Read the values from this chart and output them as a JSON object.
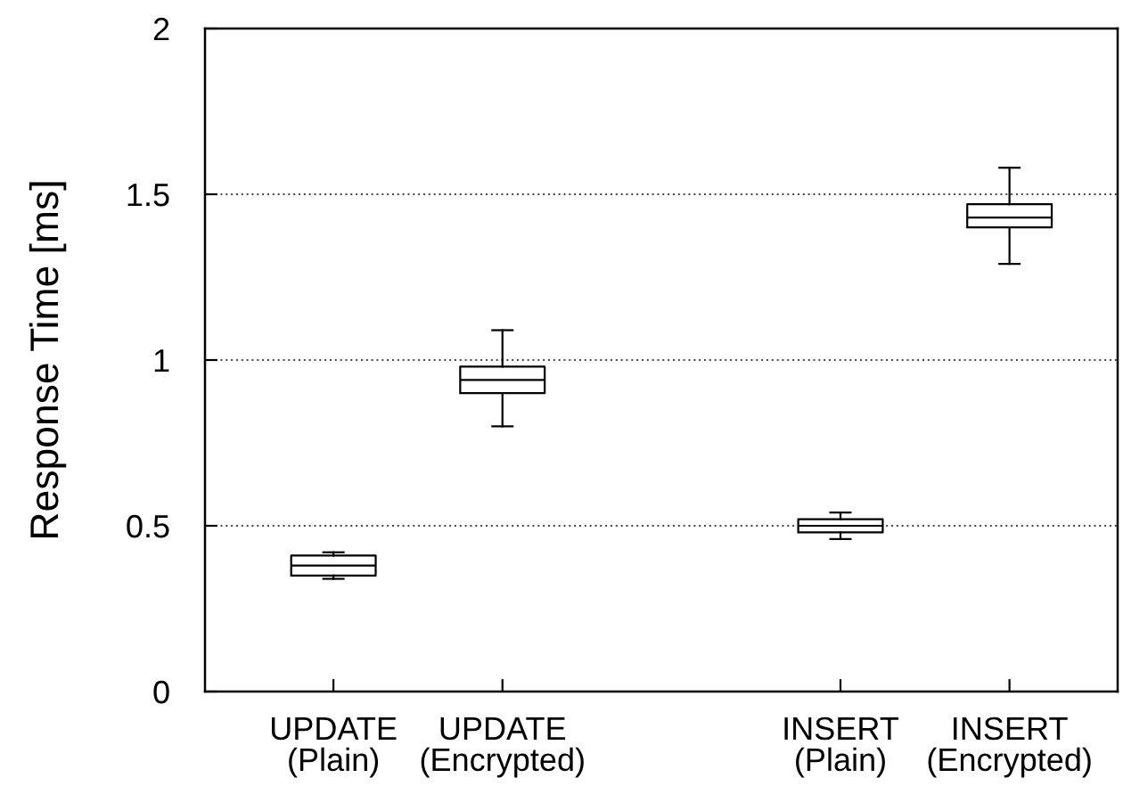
{
  "chart_data": {
    "type": "box",
    "ylabel": "Response Time [ms]",
    "categories": [
      "UPDATE\n(Plain)",
      "UPDATE\n(Encrypted)",
      null,
      "INSERT\n(Plain)",
      "INSERT\n(Encrypted)"
    ],
    "boxes": [
      {
        "low": 0.34,
        "q1": 0.35,
        "median": 0.38,
        "q3": 0.41,
        "high": 0.42
      },
      {
        "low": 0.8,
        "q1": 0.9,
        "median": 0.94,
        "q3": 0.98,
        "high": 1.09
      },
      null,
      {
        "low": 0.46,
        "q1": 0.48,
        "median": 0.5,
        "q3": 0.52,
        "high": 0.54
      },
      {
        "low": 1.29,
        "q1": 1.4,
        "median": 1.43,
        "q3": 1.47,
        "high": 1.58
      }
    ],
    "ylim": [
      0,
      2
    ],
    "yticks": [
      0,
      0.5,
      1,
      1.5,
      2
    ],
    "grid": "y"
  }
}
